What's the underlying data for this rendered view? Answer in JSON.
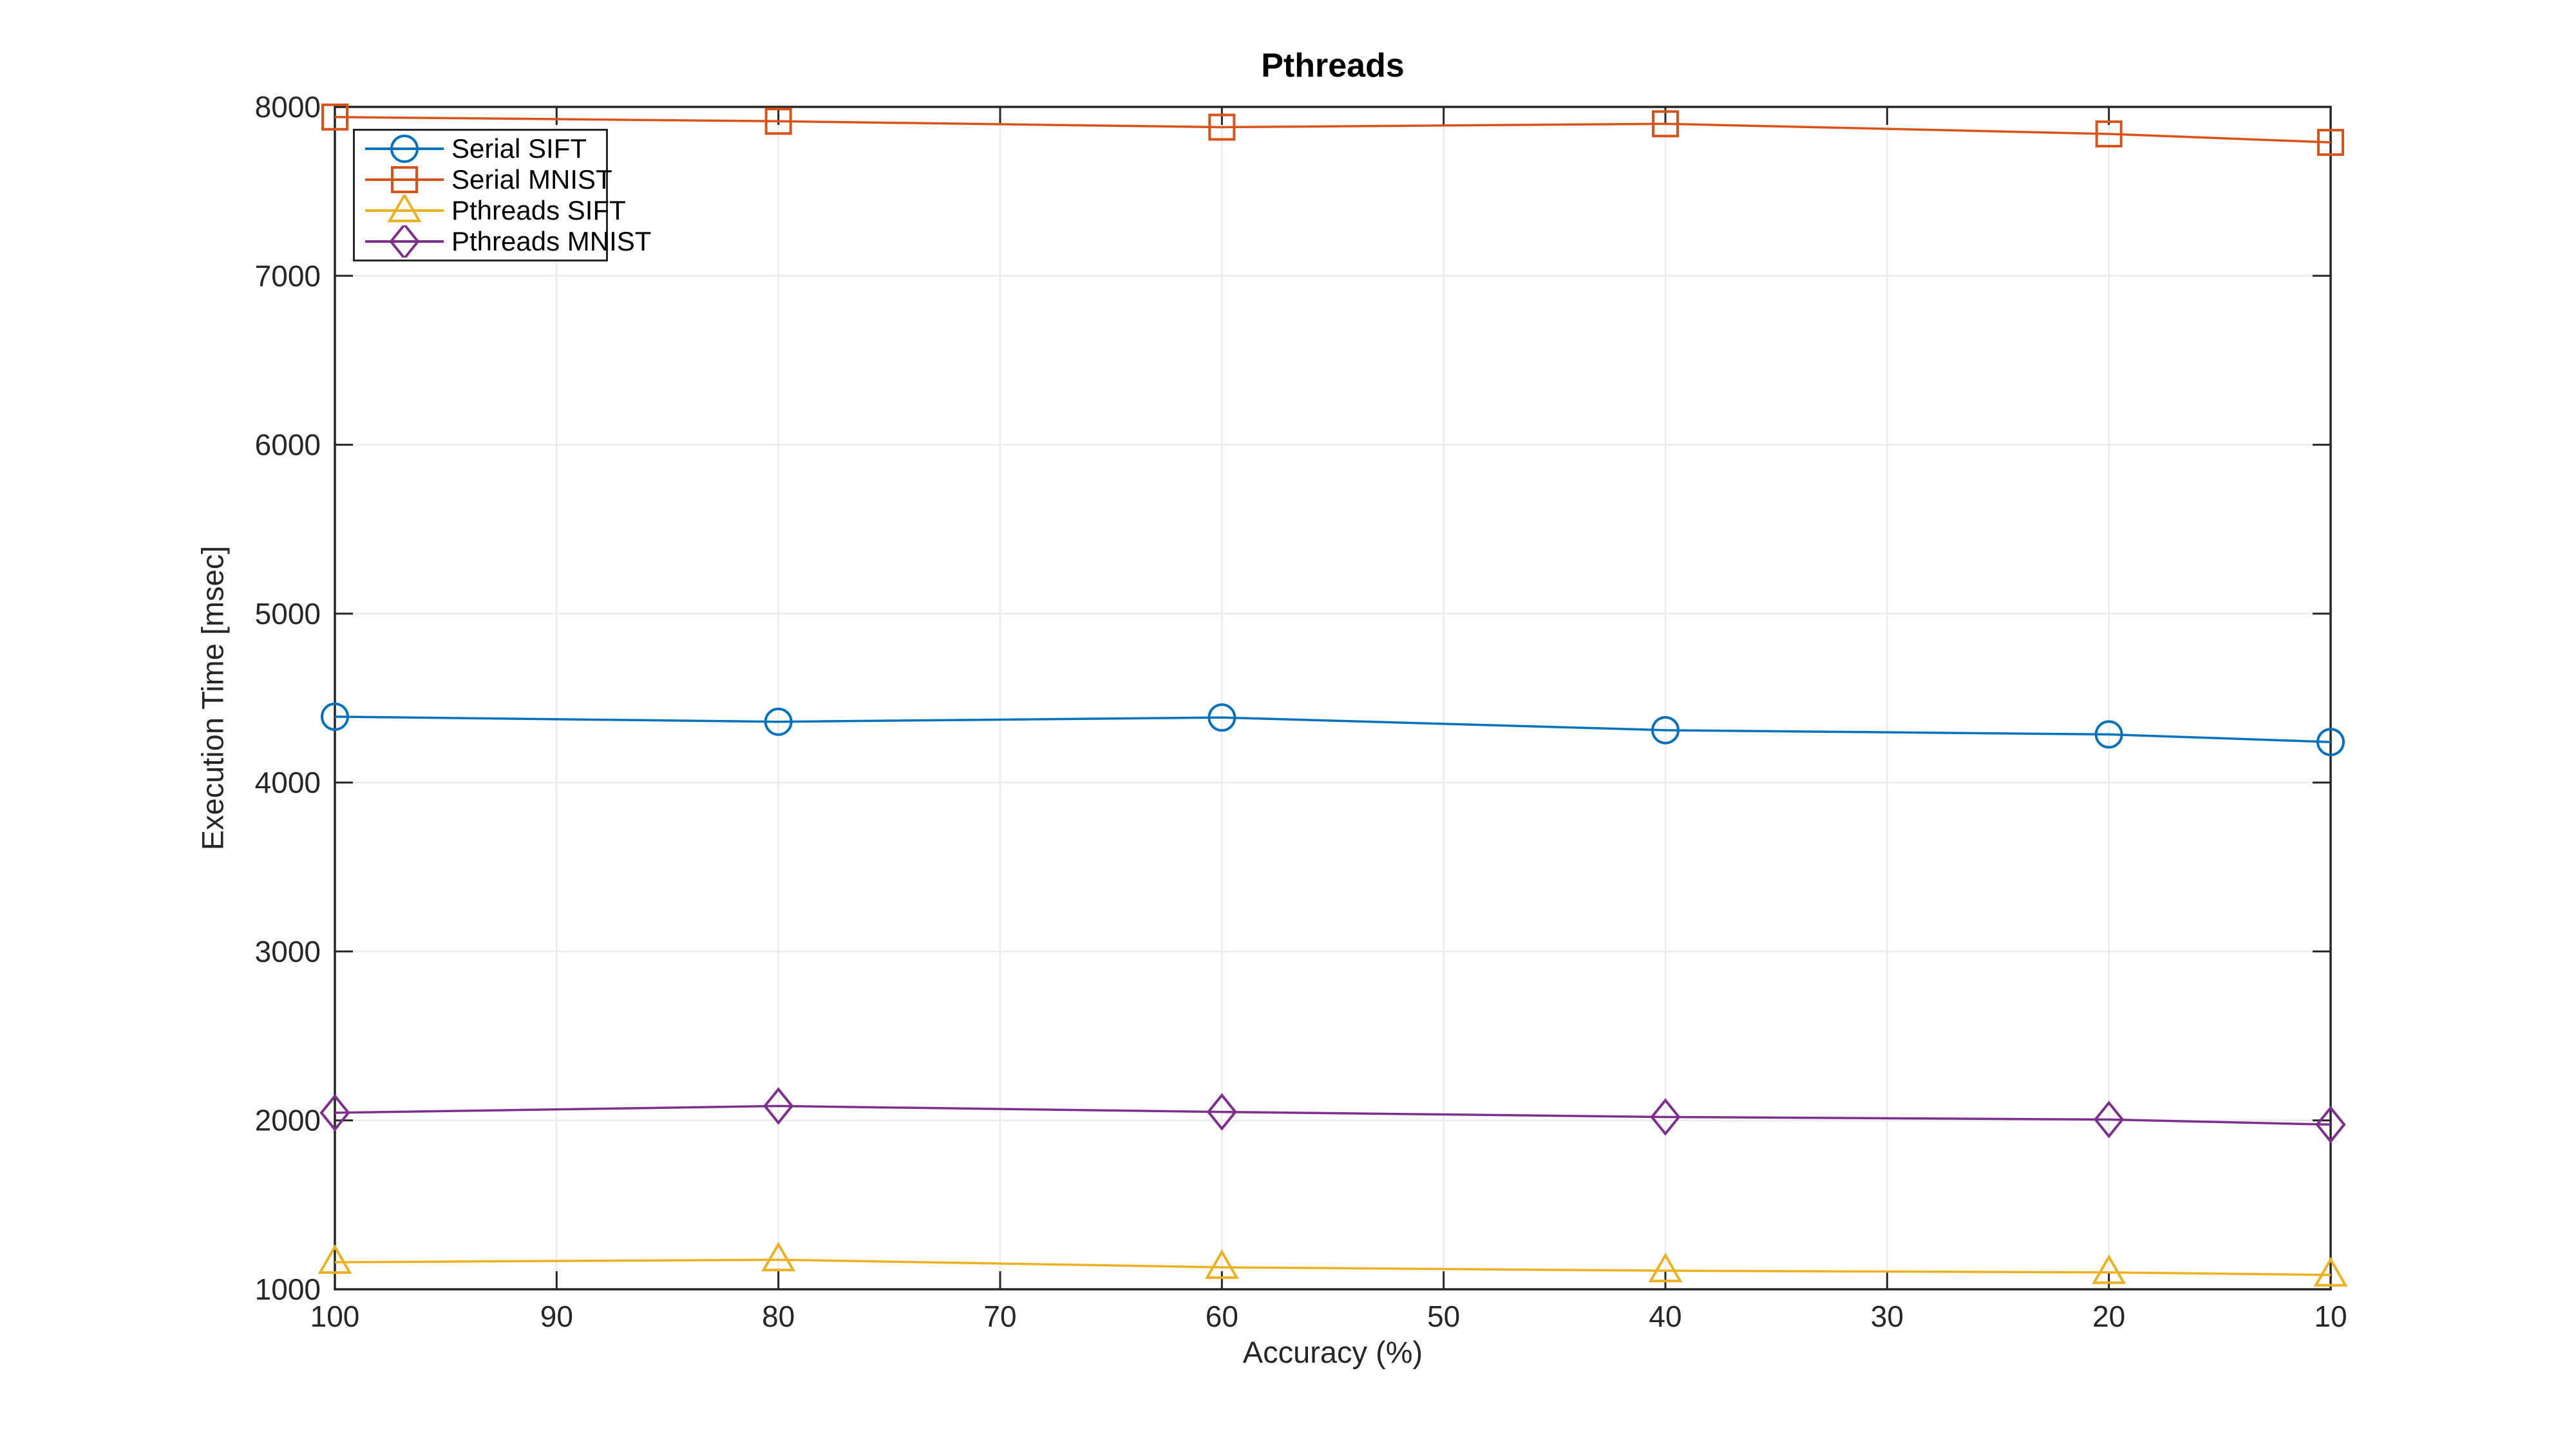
{
  "chart_data": {
    "type": "line",
    "title": "Pthreads",
    "xlabel": "Accuracy (%)",
    "ylabel": "Execution Time [msec]",
    "x": [
      100,
      80,
      60,
      40,
      20,
      10
    ],
    "x_ticks": [
      100,
      90,
      80,
      70,
      60,
      50,
      40,
      30,
      20,
      10
    ],
    "y_ticks": [
      1000,
      2000,
      3000,
      4000,
      5000,
      6000,
      7000,
      8000
    ],
    "xlim": [
      100,
      10
    ],
    "ylim": [
      1000,
      8000
    ],
    "x_axis_reversed": true,
    "grid": true,
    "legend_position": "top-left-inside",
    "axis_color": "#262626",
    "grid_color": "#EBEBEB",
    "series": [
      {
        "name": "Serial SIFT",
        "color": "#0072BD",
        "marker": "circle",
        "values": [
          4390,
          4360,
          4385,
          4310,
          4285,
          4240
        ]
      },
      {
        "name": "Serial MNIST",
        "color": "#D95319",
        "marker": "square",
        "values": [
          7940,
          7915,
          7880,
          7900,
          7840,
          7790
        ]
      },
      {
        "name": "Pthreads SIFT",
        "color": "#EDB120",
        "marker": "triangle",
        "values": [
          1160,
          1175,
          1130,
          1110,
          1100,
          1085
        ]
      },
      {
        "name": "Pthreads MNIST",
        "color": "#7E2F8E",
        "marker": "diamond",
        "values": [
          2045,
          2085,
          2050,
          2020,
          2005,
          1975
        ]
      }
    ]
  }
}
